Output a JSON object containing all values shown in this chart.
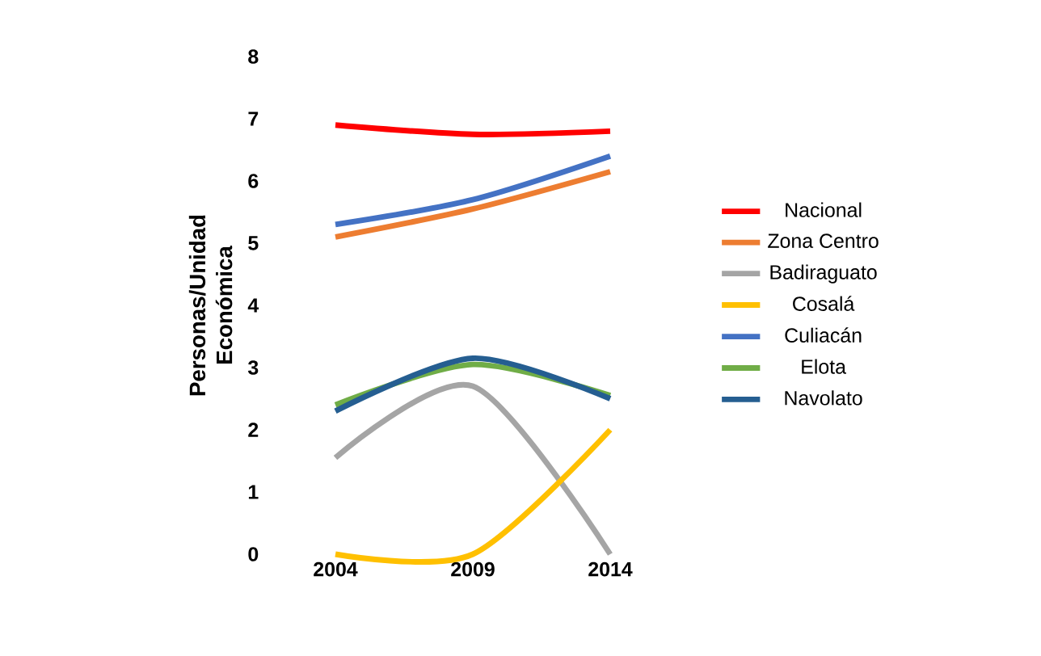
{
  "chart_data": {
    "type": "line",
    "ylabel": "Personas/Unidad Económica",
    "categories": [
      "2004",
      "2009",
      "2014"
    ],
    "ylim": [
      0,
      8
    ],
    "yticks": [
      0,
      1,
      2,
      3,
      4,
      5,
      6,
      7,
      8
    ],
    "legend": "right",
    "grid": false,
    "series": [
      {
        "name": "Nacional",
        "color": "#ff0000",
        "values": [
          6.9,
          6.75,
          6.8
        ]
      },
      {
        "name": "Zona Centro",
        "color": "#ed7d31",
        "values": [
          5.1,
          5.55,
          6.15
        ]
      },
      {
        "name": "Badiraguato",
        "color": "#a5a5a5",
        "values": [
          1.55,
          2.7,
          0
        ]
      },
      {
        "name": "Cosalá",
        "color": "#ffc000",
        "values": [
          0,
          0,
          2.0
        ]
      },
      {
        "name": "Culiacán",
        "color": "#4472c4",
        "values": [
          5.3,
          5.7,
          6.4
        ]
      },
      {
        "name": "Elota",
        "color": "#70ad47",
        "values": [
          2.4,
          3.05,
          2.55
        ]
      },
      {
        "name": "Navolato",
        "color": "#255e91",
        "values": [
          2.3,
          3.15,
          2.5
        ]
      }
    ]
  }
}
